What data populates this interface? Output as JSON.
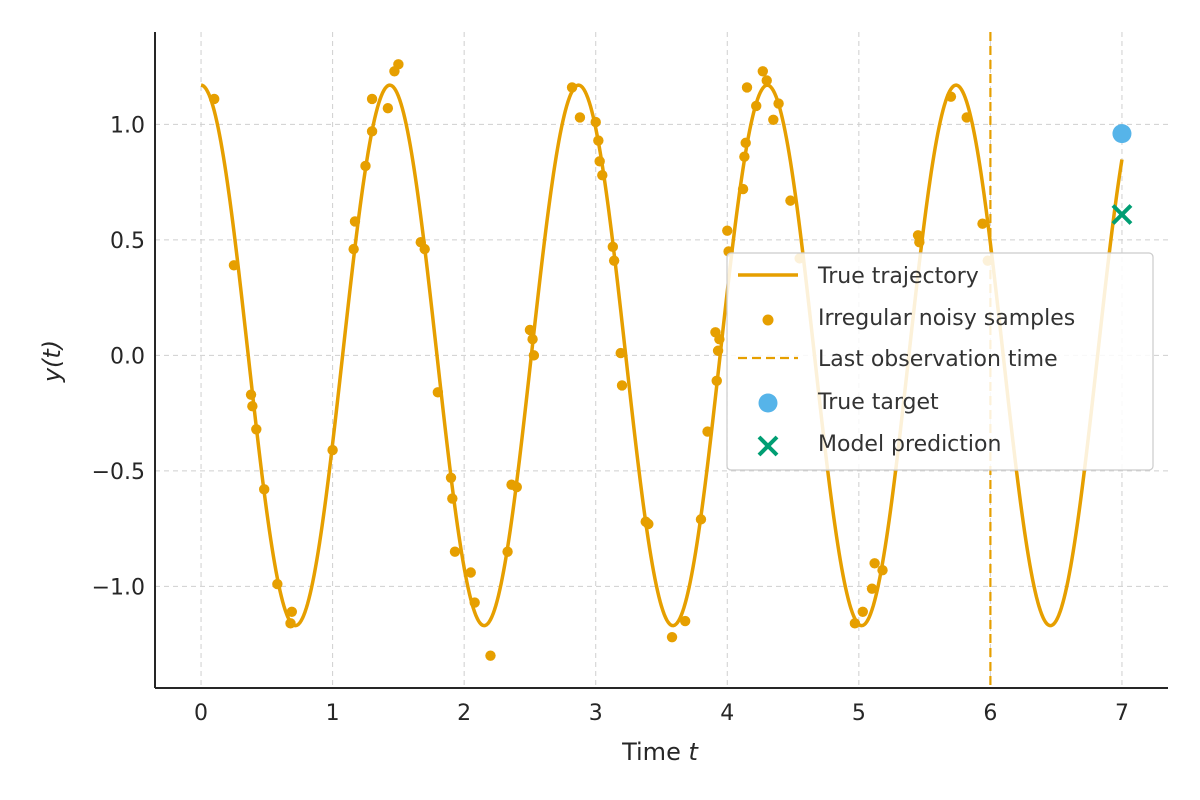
{
  "chart_data": {
    "type": "line",
    "title": "",
    "xlabel_prefix": "Time ",
    "xlabel_var": "t",
    "ylabel": "y(t)",
    "xlim": [
      -0.35,
      7.35
    ],
    "ylim": [
      -1.44,
      1.4
    ],
    "xticks": [
      0,
      1,
      2,
      3,
      4,
      5,
      6,
      7
    ],
    "xtick_labels": [
      "0",
      "1",
      "2",
      "3",
      "4",
      "5",
      "6",
      "7"
    ],
    "yticks": [
      1.0,
      0.5,
      0.0,
      -0.5,
      -1.0
    ],
    "ytick_labels": [
      "1.0",
      "0.5",
      "0.0",
      "−0.5",
      "−1.0"
    ],
    "grid": true,
    "legend_position": "right",
    "colors": {
      "trajectory": "#E69F00",
      "samples": "#E69F00",
      "last_obs": "#E69F00",
      "target": "#56B4E9",
      "prediction": "#009E73"
    },
    "series": [
      {
        "name": "True trajectory",
        "kind": "line",
        "amplitude": 1.17,
        "frequency_hz": 0.697,
        "x_range": [
          0,
          7
        ],
        "model": "y = 1.17 * cos(2*pi*0.697*t)"
      },
      {
        "name": "Irregular noisy samples",
        "kind": "scatter",
        "points": [
          [
            0.1,
            1.11
          ],
          [
            0.25,
            0.39
          ],
          [
            0.38,
            -0.17
          ],
          [
            0.39,
            -0.22
          ],
          [
            0.42,
            -0.32
          ],
          [
            0.48,
            -0.58
          ],
          [
            0.58,
            -0.99
          ],
          [
            0.68,
            -1.16
          ],
          [
            0.69,
            -1.11
          ],
          [
            1.0,
            -0.41
          ],
          [
            1.16,
            0.46
          ],
          [
            1.17,
            0.58
          ],
          [
            1.25,
            0.82
          ],
          [
            1.3,
            0.97
          ],
          [
            1.3,
            1.11
          ],
          [
            1.42,
            1.07
          ],
          [
            1.47,
            1.23
          ],
          [
            1.5,
            1.26
          ],
          [
            1.67,
            0.49
          ],
          [
            1.7,
            0.46
          ],
          [
            1.8,
            -0.16
          ],
          [
            1.9,
            -0.53
          ],
          [
            1.91,
            -0.62
          ],
          [
            1.93,
            -0.85
          ],
          [
            2.05,
            -0.94
          ],
          [
            2.08,
            -1.07
          ],
          [
            2.2,
            -1.3
          ],
          [
            2.33,
            -0.85
          ],
          [
            2.36,
            -0.56
          ],
          [
            2.4,
            -0.57
          ],
          [
            2.5,
            0.11
          ],
          [
            2.52,
            0.07
          ],
          [
            2.53,
            0.0
          ],
          [
            2.82,
            1.16
          ],
          [
            2.88,
            1.03
          ],
          [
            3.0,
            1.01
          ],
          [
            3.02,
            0.93
          ],
          [
            3.03,
            0.84
          ],
          [
            3.05,
            0.78
          ],
          [
            3.13,
            0.47
          ],
          [
            3.14,
            0.41
          ],
          [
            3.19,
            0.01
          ],
          [
            3.2,
            -0.13
          ],
          [
            3.38,
            -0.72
          ],
          [
            3.4,
            -0.73
          ],
          [
            3.58,
            -1.22
          ],
          [
            3.68,
            -1.15
          ],
          [
            3.8,
            -0.71
          ],
          [
            3.85,
            -0.33
          ],
          [
            3.91,
            0.1
          ],
          [
            3.92,
            -0.11
          ],
          [
            3.93,
            0.02
          ],
          [
            3.94,
            0.07
          ],
          [
            4.0,
            0.54
          ],
          [
            4.01,
            0.45
          ],
          [
            4.12,
            0.72
          ],
          [
            4.13,
            0.86
          ],
          [
            4.14,
            0.92
          ],
          [
            4.15,
            1.16
          ],
          [
            4.22,
            1.08
          ],
          [
            4.27,
            1.23
          ],
          [
            4.3,
            1.19
          ],
          [
            4.35,
            1.02
          ],
          [
            4.39,
            1.09
          ],
          [
            4.48,
            0.67
          ],
          [
            4.55,
            0.42
          ],
          [
            4.97,
            -1.16
          ],
          [
            5.03,
            -1.11
          ],
          [
            5.1,
            -1.01
          ],
          [
            5.12,
            -0.9
          ],
          [
            5.18,
            -0.93
          ],
          [
            5.45,
            0.52
          ],
          [
            5.46,
            0.49
          ],
          [
            5.7,
            1.12
          ],
          [
            5.82,
            1.03
          ],
          [
            5.94,
            0.57
          ],
          [
            5.98,
            0.41
          ]
        ]
      },
      {
        "name": "Last observation time",
        "kind": "vline",
        "x": 6.0
      },
      {
        "name": "True target",
        "kind": "marker",
        "x": 7.0,
        "y": 0.96
      },
      {
        "name": "Model prediction",
        "kind": "marker",
        "x": 7.0,
        "y": 0.61
      }
    ]
  }
}
